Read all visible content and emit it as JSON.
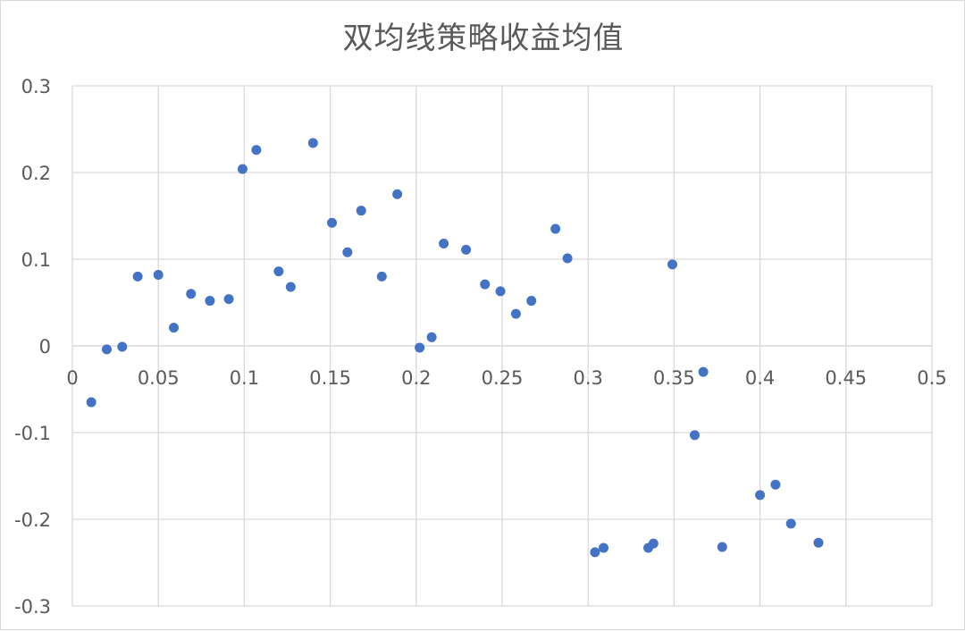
{
  "chart_data": {
    "type": "scatter",
    "title": "双均线策略收益均值",
    "xlabel": "",
    "ylabel": "",
    "xlim": [
      0,
      0.5
    ],
    "ylim": [
      -0.3,
      0.3
    ],
    "x_ticks": [
      {
        "value": 0,
        "label": "0"
      },
      {
        "value": 0.05,
        "label": "0.05"
      },
      {
        "value": 0.1,
        "label": "0.1"
      },
      {
        "value": 0.15,
        "label": "0.15"
      },
      {
        "value": 0.2,
        "label": "0.2"
      },
      {
        "value": 0.25,
        "label": "0.25"
      },
      {
        "value": 0.3,
        "label": "0.3"
      },
      {
        "value": 0.35,
        "label": "0.35"
      },
      {
        "value": 0.4,
        "label": "0.4"
      },
      {
        "value": 0.45,
        "label": "0.45"
      },
      {
        "value": 0.5,
        "label": "0.5"
      }
    ],
    "y_ticks": [
      {
        "value": 0.3,
        "label": "0.3"
      },
      {
        "value": 0.2,
        "label": "0.2"
      },
      {
        "value": 0.1,
        "label": "0.1"
      },
      {
        "value": 0,
        "label": "0"
      },
      {
        "value": -0.1,
        "label": "-0.1"
      },
      {
        "value": -0.2,
        "label": "-0.2"
      },
      {
        "value": -0.3,
        "label": "-0.3"
      }
    ],
    "grid": true,
    "legend": "none",
    "marker_color": "#4472c4",
    "gridline_color": "#d9d9d9",
    "points": [
      {
        "x": 0.011,
        "y": -0.065
      },
      {
        "x": 0.02,
        "y": -0.004
      },
      {
        "x": 0.029,
        "y": -0.001
      },
      {
        "x": 0.038,
        "y": 0.08
      },
      {
        "x": 0.05,
        "y": 0.082
      },
      {
        "x": 0.059,
        "y": 0.021
      },
      {
        "x": 0.069,
        "y": 0.06
      },
      {
        "x": 0.08,
        "y": 0.052
      },
      {
        "x": 0.091,
        "y": 0.054
      },
      {
        "x": 0.099,
        "y": 0.204
      },
      {
        "x": 0.107,
        "y": 0.226
      },
      {
        "x": 0.12,
        "y": 0.086
      },
      {
        "x": 0.127,
        "y": 0.068
      },
      {
        "x": 0.14,
        "y": 0.234
      },
      {
        "x": 0.151,
        "y": 0.142
      },
      {
        "x": 0.16,
        "y": 0.108
      },
      {
        "x": 0.168,
        "y": 0.156
      },
      {
        "x": 0.18,
        "y": 0.08
      },
      {
        "x": 0.189,
        "y": 0.175
      },
      {
        "x": 0.202,
        "y": -0.002
      },
      {
        "x": 0.209,
        "y": 0.01
      },
      {
        "x": 0.216,
        "y": 0.118
      },
      {
        "x": 0.229,
        "y": 0.111
      },
      {
        "x": 0.24,
        "y": 0.071
      },
      {
        "x": 0.249,
        "y": 0.063
      },
      {
        "x": 0.258,
        "y": 0.037
      },
      {
        "x": 0.267,
        "y": 0.052
      },
      {
        "x": 0.281,
        "y": 0.135
      },
      {
        "x": 0.288,
        "y": 0.101
      },
      {
        "x": 0.304,
        "y": -0.238
      },
      {
        "x": 0.309,
        "y": -0.233
      },
      {
        "x": 0.335,
        "y": -0.233
      },
      {
        "x": 0.338,
        "y": -0.228
      },
      {
        "x": 0.349,
        "y": 0.094
      },
      {
        "x": 0.362,
        "y": -0.103
      },
      {
        "x": 0.367,
        "y": -0.03
      },
      {
        "x": 0.378,
        "y": -0.232
      },
      {
        "x": 0.4,
        "y": -0.172
      },
      {
        "x": 0.409,
        "y": -0.16
      },
      {
        "x": 0.418,
        "y": -0.205
      },
      {
        "x": 0.434,
        "y": -0.227
      }
    ]
  }
}
